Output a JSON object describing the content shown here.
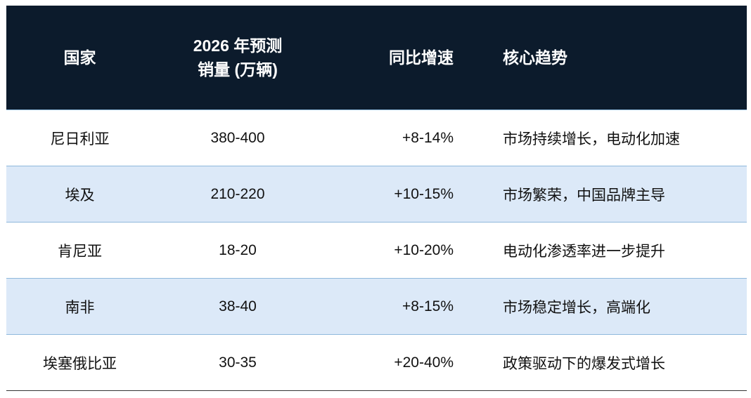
{
  "table": {
    "header": [
      "国家",
      [
        "2026 年预测",
        "销量 (万辆)"
      ],
      "同比增速",
      "核心趋势"
    ],
    "rows": [
      [
        "尼日利亚",
        "380-400",
        "+8-14%",
        "市场持续增长，电动化加速"
      ],
      [
        "埃及",
        "210-220",
        "+10-15%",
        "市场繁荣，中国品牌主导"
      ],
      [
        "肯尼亚",
        "18-20",
        "+10-20%",
        "电动化渗透率进一步提升"
      ],
      [
        "南非",
        "38-40",
        "+8-15%",
        "市场稳定增长，高端化"
      ],
      [
        "埃塞俄比亚",
        "30-35",
        "+20-40%",
        "政策驱动下的爆发式增长"
      ]
    ]
  }
}
